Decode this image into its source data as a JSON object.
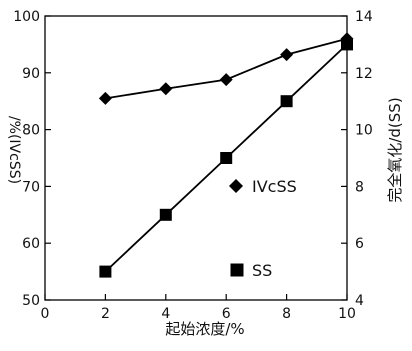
{
  "chart_data": {
    "type": "line",
    "title": "",
    "xlabel": "起始浓度/%",
    "ylabel_left": "/%(IVcSS)",
    "ylabel_right": "完全氧化/d(SS)",
    "xlim": [
      0,
      10
    ],
    "ylim_left": [
      50,
      100
    ],
    "ylim_right": [
      4,
      14
    ],
    "x_ticks": [
      "0",
      "2",
      "4",
      "6",
      "8",
      "10"
    ],
    "y_ticks_left": [
      "50",
      "60",
      "70",
      "80",
      "90",
      "100"
    ],
    "y_ticks_right": [
      "4",
      "6",
      "8",
      "10",
      "12",
      "14"
    ],
    "grid": false,
    "legend_position": "inside-right",
    "series": [
      {
        "name": "IVcSS",
        "axis": "left",
        "marker": "diamond",
        "x": [
          2,
          4,
          6,
          8,
          10
        ],
        "values": [
          85.5,
          87.2,
          88.8,
          93.2,
          96.0
        ]
      },
      {
        "name": "SS",
        "axis": "right",
        "marker": "square",
        "x": [
          2,
          4,
          6,
          8,
          10
        ],
        "values": [
          5.0,
          7.0,
          9.0,
          11.0,
          13.0
        ]
      }
    ],
    "colors": {
      "series": "#000000",
      "axis": "#000000"
    }
  }
}
